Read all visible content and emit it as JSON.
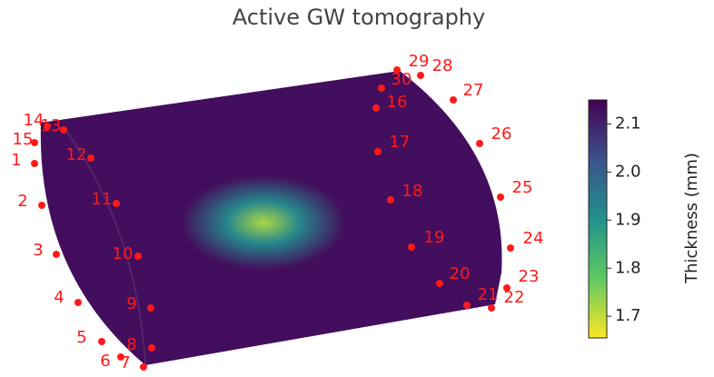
{
  "chart_data": {
    "type": "surface",
    "title": "Active GW tomography",
    "sensors": [
      "1",
      "2",
      "3",
      "4",
      "5",
      "6",
      "7",
      "8",
      "9",
      "10",
      "11",
      "12",
      "13",
      "14",
      "15",
      "16",
      "17",
      "18",
      "19",
      "20",
      "21",
      "22",
      "23",
      "24",
      "25",
      "26",
      "27",
      "28",
      "29",
      "30"
    ],
    "sensor_color": "#ff1a1a",
    "surface": {
      "nominal": 2.13,
      "defect_min": 1.72
    },
    "colormap": [
      "#fde725",
      "#5ec962",
      "#21918c",
      "#3b528b",
      "#440154"
    ],
    "colorbar": {
      "label": "Thickness (mm)",
      "lim": [
        1.655,
        2.15
      ],
      "ticks": [
        1.7,
        1.8,
        1.9,
        {
          "value": 2,
          "label": "2.0"
        },
        2.1
      ]
    }
  }
}
